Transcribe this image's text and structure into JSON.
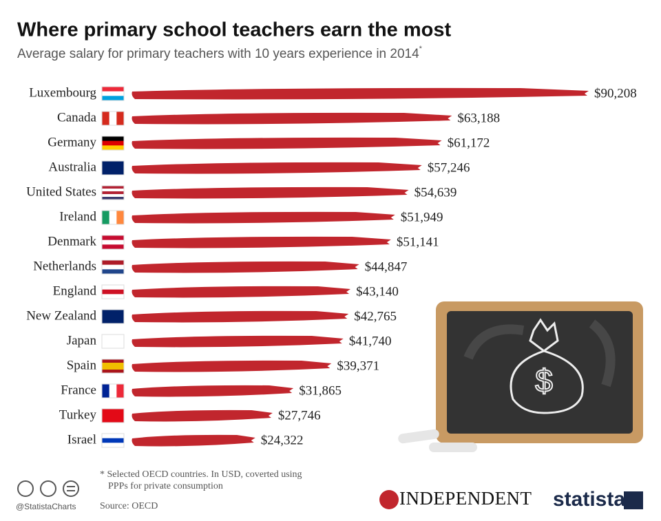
{
  "chart_data": {
    "type": "bar",
    "orientation": "horizontal",
    "title": "Where primary school teachers earn the most",
    "subtitle": "Average salary for primary teachers with 10 years experience in 2014",
    "subtitle_mark": "*",
    "categories": [
      "Luxembourg",
      "Canada",
      "Germany",
      "Australia",
      "United States",
      "Ireland",
      "Denmark",
      "Netherlands",
      "England",
      "New Zealand",
      "Japan",
      "Spain",
      "France",
      "Turkey",
      "Israel"
    ],
    "values": [
      90208,
      63188,
      61172,
      57246,
      54639,
      51949,
      51141,
      44847,
      43140,
      42765,
      41740,
      39371,
      31865,
      27746,
      24322
    ],
    "value_labels": [
      "$90,208",
      "$63,188",
      "$61,172",
      "$57,246",
      "$54,639",
      "$51,949",
      "$51,141",
      "$44,847",
      "$43,140",
      "$42,765",
      "$41,740",
      "$39,371",
      "$31,865",
      "$27,746",
      "$24,322"
    ],
    "color": "#c1262d",
    "note": [
      "* Selected OECD countries. In USD, coverted using",
      "PPPs for private consumption"
    ],
    "source": "Source: OECD",
    "credit": "@StatistaCharts",
    "partner": "INDEPENDENT",
    "brand": "statista"
  }
}
